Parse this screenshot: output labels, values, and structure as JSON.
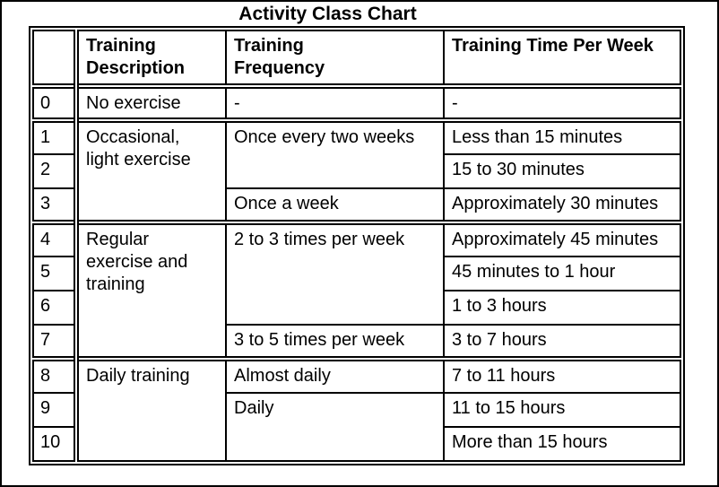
{
  "title": "Activity Class Chart",
  "colors": {
    "border": "#000000",
    "text": "#000000",
    "background": "#ffffff"
  },
  "table": {
    "headers": {
      "class": "",
      "description": "Training\nDescription",
      "frequency": "Training\nFrequency",
      "time": "Training Time Per Week"
    },
    "rows": [
      {
        "num": "0",
        "desc": "No exercise",
        "freq": "-",
        "time": "-"
      },
      {
        "num": "1",
        "desc": "Occasional,\nlight exercise",
        "freq": "Once every two weeks",
        "time": "Less than 15 minutes"
      },
      {
        "num": "2",
        "time": "15 to 30 minutes"
      },
      {
        "num": "3",
        "freq": "Once a week",
        "time": "Approximately 30 minutes"
      },
      {
        "num": "4",
        "desc": "Regular\nexercise and\ntraining",
        "freq": "2 to 3 times per week",
        "time": "Approximately 45 minutes"
      },
      {
        "num": "5",
        "time": "45 minutes to 1 hour"
      },
      {
        "num": "6",
        "time": "1 to 3 hours"
      },
      {
        "num": "7",
        "freq": "3 to 5 times per week",
        "time": "3 to 7 hours"
      },
      {
        "num": "8",
        "desc": "Daily training",
        "freq": "Almost daily",
        "time": "7 to 11 hours"
      },
      {
        "num": "9",
        "freq": "Daily",
        "time": "11 to 15 hours"
      },
      {
        "num": "10",
        "time": "More than 15 hours"
      }
    ]
  }
}
